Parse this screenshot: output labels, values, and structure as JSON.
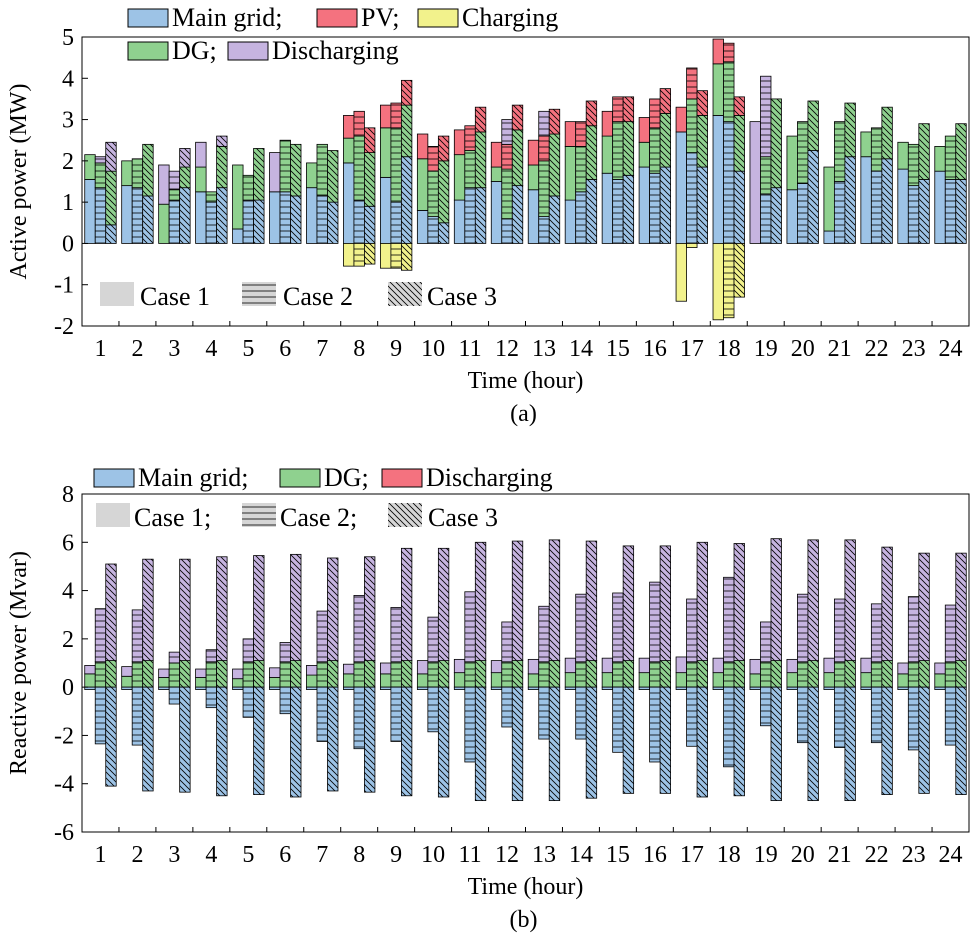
{
  "colors": {
    "main_grid": "#9DC3E6",
    "pv": "#F4727F",
    "charging": "#F2F28C",
    "dg": "#8FD18F",
    "discharging": "#C6B4E0",
    "case1": "#d6d6d6",
    "edge": "#000000"
  },
  "chart_data": [
    {
      "type": "bar",
      "stacked": true,
      "grouped_by": [
        "Case 1",
        "Case 2",
        "Case 3"
      ],
      "caption": "(a)",
      "xlabel": "Time (hour)",
      "ylabel": "Active power (MW)",
      "ylim": [
        -2,
        5
      ],
      "yticks": [
        "-2",
        "-1",
        "0",
        "1",
        "2",
        "3",
        "4",
        "5"
      ],
      "categories": [
        "1",
        "2",
        "3",
        "4",
        "5",
        "6",
        "7",
        "8",
        "9",
        "10",
        "11",
        "12",
        "13",
        "14",
        "15",
        "16",
        "17",
        "18",
        "19",
        "20",
        "21",
        "22",
        "23",
        "24"
      ],
      "legend": [
        {
          "label": "Main grid;",
          "color": "#9DC3E6"
        },
        {
          "label": "PV;",
          "color": "#F4727F"
        },
        {
          "label": "Charging",
          "color": "#F2F28C"
        },
        {
          "label": "DG;",
          "color": "#8FD18F"
        },
        {
          "label": "Discharging",
          "color": "#C6B4E0"
        }
      ],
      "case_legend": [
        "Case 1",
        "Case 2",
        "Case 3"
      ],
      "series_order": [
        "Main grid",
        "DG",
        "PV",
        "Discharging"
      ],
      "negative_series": "Charging",
      "cases": [
        {
          "name": "Case 1",
          "series": [
            {
              "name": "Main grid",
              "values": [
                1.55,
                1.4,
                0,
                1.25,
                0.35,
                1.25,
                1.35,
                1.95,
                1.6,
                0.8,
                1.05,
                1.5,
                1.3,
                1.05,
                1.7,
                1.85,
                2.7,
                3.1,
                0,
                1.3,
                0.3,
                2.1,
                1.8,
                1.75
              ]
            },
            {
              "name": "DG",
              "values": [
                0.6,
                0.6,
                0.95,
                0.6,
                1.55,
                0,
                0.6,
                0.6,
                1.2,
                1.25,
                1.1,
                0.35,
                0.6,
                1.3,
                0.9,
                0.6,
                0,
                1.25,
                0,
                1.3,
                1.55,
                0.6,
                0.65,
                0.6
              ]
            },
            {
              "name": "PV",
              "values": [
                0,
                0,
                0,
                0,
                0,
                0,
                0,
                0.55,
                0.55,
                0.6,
                0.6,
                0.6,
                0.6,
                0.6,
                0.6,
                0.6,
                0.6,
                0.6,
                0,
                0,
                0,
                0,
                0,
                0
              ]
            },
            {
              "name": "Discharging",
              "values": [
                0,
                0,
                0.95,
                0.6,
                0,
                0.95,
                0,
                0,
                0,
                0,
                0,
                0,
                0,
                0,
                0,
                0,
                0,
                0,
                2.95,
                0,
                0,
                0,
                0,
                0
              ]
            },
            {
              "name": "Charging",
              "values": [
                0,
                0,
                0,
                0,
                0,
                0,
                0,
                -0.55,
                -0.6,
                0,
                0,
                0,
                0,
                0,
                0,
                0,
                -1.4,
                -1.85,
                0,
                0,
                0,
                0,
                0,
                0
              ]
            }
          ]
        },
        {
          "name": "Case 2",
          "series": [
            {
              "name": "Main grid",
              "values": [
                1.35,
                1.35,
                1.05,
                1.0,
                1.05,
                1.25,
                1.15,
                1.05,
                1.0,
                0.65,
                1.35,
                0.6,
                0.65,
                1.25,
                1.55,
                1.7,
                2.2,
                2.95,
                1.2,
                1.45,
                1.5,
                1.75,
                1.4,
                1.55
              ]
            },
            {
              "name": "DG",
              "values": [
                0.6,
                0.7,
                0.25,
                0.25,
                0.6,
                1.25,
                1.25,
                1.55,
                1.8,
                1.1,
                0.9,
                1.2,
                1.35,
                1.1,
                1.4,
                1.1,
                1.3,
                1.45,
                0.9,
                1.5,
                1.45,
                1.05,
                1.0,
                1.05
              ]
            },
            {
              "name": "PV",
              "values": [
                0,
                0,
                0,
                0,
                0,
                0,
                0,
                0.6,
                0.6,
                0.6,
                0.6,
                0.6,
                0.6,
                0.6,
                0.6,
                0.7,
                0.75,
                0.45,
                0,
                0,
                0,
                0,
                0,
                0
              ]
            },
            {
              "name": "Discharging",
              "values": [
                0.15,
                0,
                0.45,
                0,
                0,
                0,
                0,
                0,
                0,
                0,
                0,
                0.6,
                0.6,
                0,
                0,
                0,
                0,
                0,
                1.95,
                0,
                0,
                0,
                0,
                0
              ]
            },
            {
              "name": "Charging",
              "values": [
                0,
                0,
                0,
                0,
                0,
                0,
                0,
                -0.55,
                -0.6,
                0,
                0,
                0,
                0,
                0,
                0,
                0,
                -0.1,
                -1.8,
                0,
                0,
                0,
                0,
                0,
                0
              ]
            }
          ]
        },
        {
          "name": "Case 3",
          "series": [
            {
              "name": "Main grid",
              "values": [
                0.45,
                1.15,
                1.35,
                1.35,
                1.05,
                1.15,
                1.0,
                0.9,
                2.1,
                0.5,
                1.35,
                1.4,
                1.15,
                1.55,
                1.65,
                1.85,
                1.85,
                1.75,
                1.35,
                2.25,
                2.1,
                2.05,
                1.55,
                1.55
              ]
            },
            {
              "name": "DG",
              "values": [
                1.3,
                1.25,
                0.5,
                1.0,
                1.25,
                1.25,
                1.25,
                1.3,
                1.25,
                1.5,
                1.35,
                1.35,
                1.5,
                1.3,
                1.3,
                1.3,
                1.25,
                1.35,
                2.15,
                1.2,
                1.3,
                1.25,
                1.35,
                1.35
              ]
            },
            {
              "name": "PV",
              "values": [
                0,
                0,
                0,
                0,
                0,
                0,
                0,
                0.6,
                0.6,
                0.6,
                0.6,
                0.6,
                0.6,
                0.6,
                0.6,
                0.6,
                0.6,
                0.45,
                0,
                0,
                0,
                0,
                0,
                0
              ]
            },
            {
              "name": "Discharging",
              "values": [
                0.7,
                0,
                0.45,
                0.25,
                0,
                0,
                0,
                0,
                0,
                0,
                0,
                0,
                0,
                0,
                0,
                0,
                0,
                0,
                0,
                0,
                0,
                0,
                0,
                0
              ]
            },
            {
              "name": "Charging",
              "values": [
                0,
                0,
                0,
                0,
                0,
                0,
                0,
                -0.5,
                -0.65,
                0,
                0,
                0,
                0,
                0,
                0,
                0,
                0,
                -1.3,
                0,
                0,
                0,
                0,
                0,
                0
              ]
            }
          ]
        }
      ]
    },
    {
      "type": "bar",
      "stacked": true,
      "grouped_by": [
        "Case 1",
        "Case 2",
        "Case 3"
      ],
      "caption": "(b)",
      "xlabel": "Time (hour)",
      "ylabel": "Reactive power (Mvar)",
      "ylim": [
        -6,
        8
      ],
      "yticks": [
        "-6",
        "-4",
        "-2",
        "0",
        "2",
        "4",
        "6",
        "8"
      ],
      "categories": [
        "1",
        "2",
        "3",
        "4",
        "5",
        "6",
        "7",
        "8",
        "9",
        "10",
        "11",
        "12",
        "13",
        "14",
        "15",
        "16",
        "17",
        "18",
        "19",
        "20",
        "21",
        "22",
        "23",
        "24"
      ],
      "legend": [
        {
          "label": "Main grid;",
          "color": "#9DC3E6"
        },
        {
          "label": "DG;",
          "color": "#8FD18F"
        },
        {
          "label": "Discharging",
          "color": "#F4727F"
        }
      ],
      "case_legend": [
        "Case 1;",
        "Case 2;",
        "Case 3"
      ],
      "series_order": [
        "DG",
        "Discharging"
      ],
      "negative_series": "Main grid",
      "cases": [
        {
          "name": "Case 1",
          "series": [
            {
              "name": "DG",
              "values": [
                0.55,
                0.45,
                0.4,
                0.4,
                0.35,
                0.4,
                0.5,
                0.55,
                0.55,
                0.55,
                0.6,
                0.6,
                0.55,
                0.6,
                0.6,
                0.6,
                0.6,
                0.6,
                0.55,
                0.6,
                0.6,
                0.6,
                0.55,
                0.55
              ]
            },
            {
              "name": "Discharging",
              "values": [
                0.35,
                0.4,
                0.35,
                0.35,
                0.4,
                0.4,
                0.4,
                0.4,
                0.45,
                0.55,
                0.55,
                0.5,
                0.6,
                0.6,
                0.6,
                0.6,
                0.65,
                0.6,
                0.6,
                0.55,
                0.6,
                0.6,
                0.45,
                0.45
              ]
            },
            {
              "name": "Main grid",
              "values": [
                -0.1,
                -0.1,
                -0.1,
                -0.1,
                -0.1,
                -0.1,
                -0.1,
                -0.1,
                -0.1,
                -0.1,
                -0.1,
                -0.1,
                -0.1,
                -0.1,
                -0.1,
                -0.1,
                -0.1,
                -0.1,
                -0.1,
                -0.1,
                -0.1,
                -0.1,
                -0.1,
                -0.1
              ]
            }
          ]
        },
        {
          "name": "Case 2",
          "series": [
            {
              "name": "DG",
              "values": [
                1.05,
                1.05,
                1.0,
                1.05,
                1.05,
                1.05,
                1.05,
                1.05,
                1.05,
                1.05,
                1.05,
                1.05,
                1.05,
                1.05,
                1.05,
                1.05,
                1.05,
                1.05,
                1.05,
                1.05,
                1.05,
                1.05,
                1.05,
                1.05
              ]
            },
            {
              "name": "Discharging",
              "values": [
                2.2,
                2.15,
                0.45,
                0.5,
                0.95,
                0.8,
                2.1,
                2.75,
                2.25,
                1.85,
                2.9,
                1.65,
                2.3,
                2.8,
                2.85,
                3.3,
                2.6,
                3.5,
                1.65,
                2.8,
                2.6,
                2.4,
                2.7,
                2.35
              ]
            },
            {
              "name": "Main grid",
              "values": [
                -2.35,
                -2.4,
                -0.7,
                -0.85,
                -1.25,
                -1.1,
                -2.25,
                -2.55,
                -2.25,
                -1.85,
                -3.1,
                -1.65,
                -2.15,
                -2.15,
                -2.7,
                -3.1,
                -2.45,
                -3.3,
                -1.6,
                -2.3,
                -2.5,
                -2.3,
                -2.6,
                -2.4
              ]
            }
          ]
        },
        {
          "name": "Case 3",
          "series": [
            {
              "name": "DG",
              "values": [
                1.1,
                1.1,
                1.1,
                1.1,
                1.1,
                1.1,
                1.1,
                1.1,
                1.1,
                1.1,
                1.1,
                1.1,
                1.1,
                1.1,
                1.1,
                1.1,
                1.1,
                1.1,
                1.1,
                1.1,
                1.1,
                1.1,
                1.1,
                1.1
              ]
            },
            {
              "name": "Discharging",
              "values": [
                4.0,
                4.2,
                4.2,
                4.3,
                4.35,
                4.4,
                4.25,
                4.3,
                4.65,
                4.65,
                4.9,
                4.95,
                5.0,
                4.95,
                4.75,
                4.75,
                4.9,
                4.85,
                5.05,
                5.0,
                5.0,
                4.7,
                4.45,
                4.45
              ]
            },
            {
              "name": "Main grid",
              "values": [
                -4.1,
                -4.3,
                -4.35,
                -4.5,
                -4.45,
                -4.55,
                -4.3,
                -4.35,
                -4.5,
                -4.55,
                -4.7,
                -4.7,
                -4.7,
                -4.6,
                -4.4,
                -4.4,
                -4.55,
                -4.5,
                -4.7,
                -4.7,
                -4.7,
                -4.45,
                -4.4,
                -4.45
              ]
            }
          ]
        }
      ]
    }
  ]
}
